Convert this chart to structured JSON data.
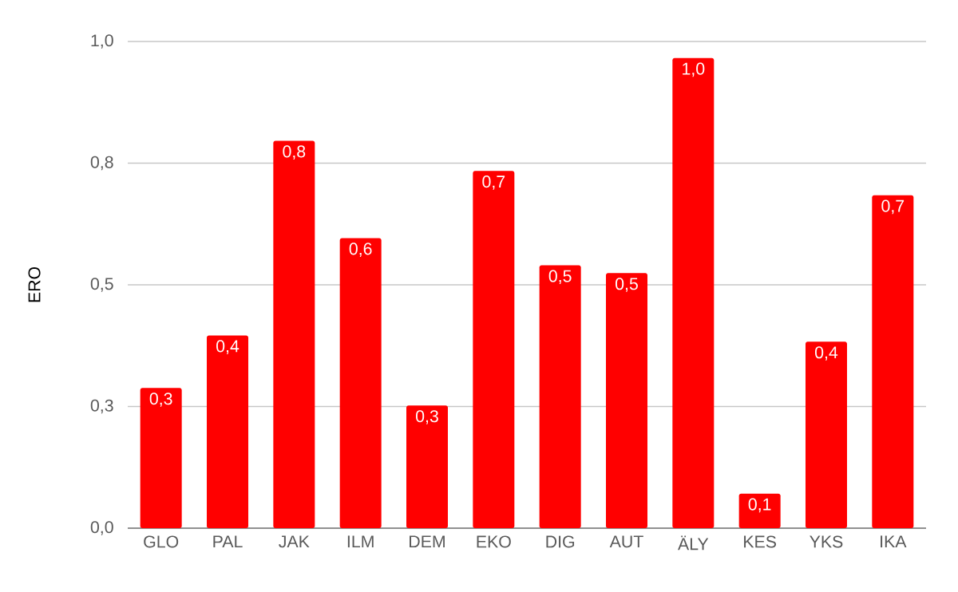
{
  "chart_data": {
    "type": "bar",
    "ylabel": "ERO",
    "categories": [
      "GLO",
      "PAL",
      "JAK",
      "ILM",
      "DEM",
      "EKO",
      "DIG",
      "AUT",
      "ÄLY",
      "KES",
      "YKS",
      "IKA"
    ],
    "values": [
      0.288,
      0.396,
      0.796,
      0.596,
      0.252,
      0.734,
      0.54,
      0.524,
      0.966,
      0.071,
      0.383,
      0.684
    ],
    "value_labels": [
      "0,3",
      "0,4",
      "0,8",
      "0,6",
      "0,3",
      "0,7",
      "0,5",
      "0,5",
      "1,0",
      "0,1",
      "0,4",
      "0,7"
    ],
    "color": "#ff0000",
    "ylim": [
      0,
      1
    ],
    "yticks": [
      {
        "value": 0,
        "label": "0,0"
      },
      {
        "value": 0.25,
        "label": "0,3"
      },
      {
        "value": 0.5,
        "label": "0,5"
      },
      {
        "value": 0.75,
        "label": "0,8"
      },
      {
        "value": 1,
        "label": "1,0"
      }
    ],
    "grid": "y"
  }
}
